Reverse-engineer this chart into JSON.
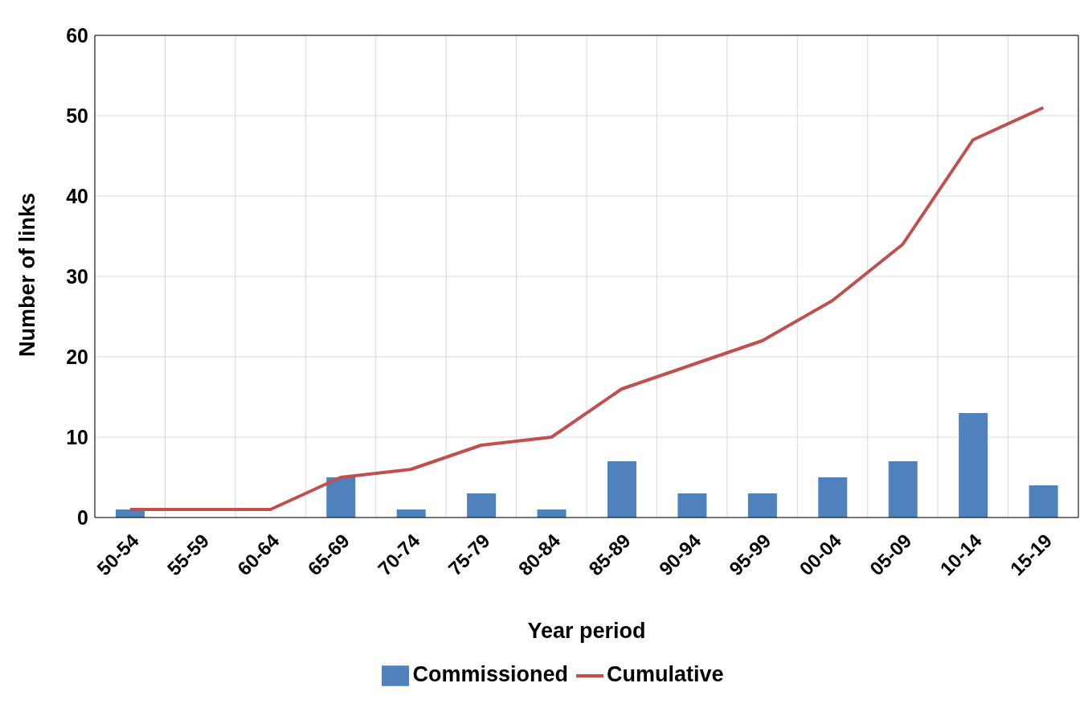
{
  "chart_data": {
    "type": "bar",
    "xlabel": "Year period",
    "ylabel": "Number of links",
    "categories": [
      "50-54",
      "55-59",
      "60-64",
      "65-69",
      "70-74",
      "75-79",
      "80-84",
      "85-89",
      "90-94",
      "95-99",
      "00-04",
      "05-09",
      "10-14",
      "15-19"
    ],
    "series": [
      {
        "name": "Commissioned",
        "color": "#4f81bd",
        "values": [
          1,
          0,
          0,
          5,
          1,
          3,
          1,
          7,
          3,
          3,
          5,
          7,
          13,
          4
        ]
      },
      {
        "name": "Cumulative",
        "type": "line",
        "color": "#c0504d",
        "values": [
          1,
          1,
          1,
          5,
          6,
          9,
          10,
          16,
          19,
          22,
          27,
          34,
          47,
          51
        ]
      }
    ],
    "ylim": [
      0,
      60
    ],
    "yticks": [
      0,
      10,
      20,
      30,
      40,
      50,
      60
    ],
    "grid": true,
    "legend": "bottom",
    "marker": "none",
    "line_style": "solid"
  }
}
